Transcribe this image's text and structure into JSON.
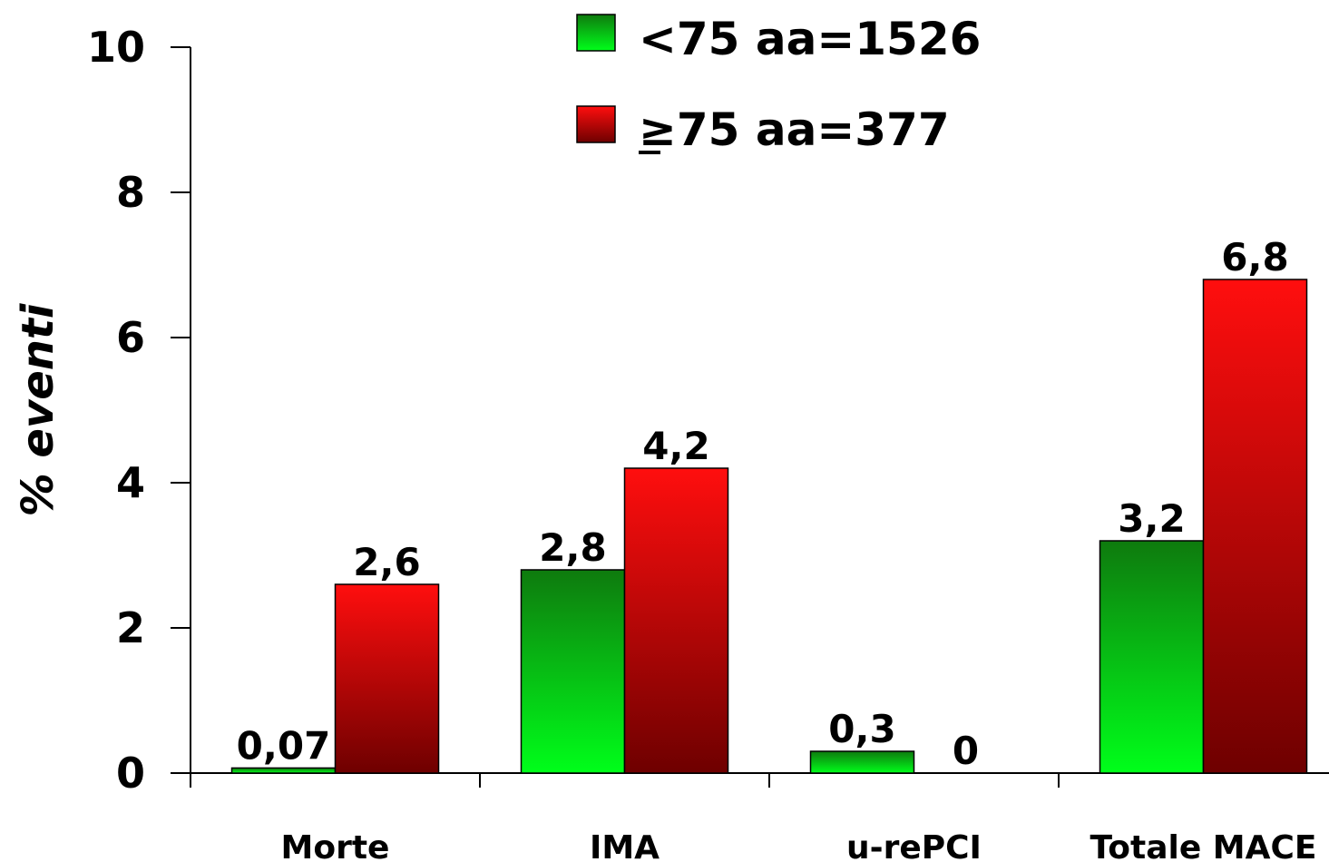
{
  "chart_data": {
    "type": "bar",
    "categories": [
      "Morte",
      "IMA",
      "u-rePCI",
      "Totale MACE"
    ],
    "series": [
      {
        "name": "<75 aa=1526",
        "values": [
          0.07,
          2.8,
          0.3,
          3.2
        ],
        "data_labels": [
          "0,07",
          "2,8",
          "0,3",
          "3,2"
        ],
        "color": "#118A11"
      },
      {
        "name": "≥75 aa=377",
        "values": [
          2.6,
          4.2,
          0,
          6.8
        ],
        "data_labels": [
          "2,6",
          "4,2",
          "0",
          "6,8"
        ],
        "color": "#E11111"
      }
    ],
    "legend": {
      "placement": "top"
    },
    "ylabel": "% eventi",
    "xlabel": "",
    "ylim": [
      0,
      10
    ],
    "yticks": [
      0,
      2,
      4,
      6,
      8,
      10
    ],
    "ytick_labels": [
      "0",
      "2",
      "4",
      "6",
      "8",
      "10"
    ],
    "grid": false
  }
}
